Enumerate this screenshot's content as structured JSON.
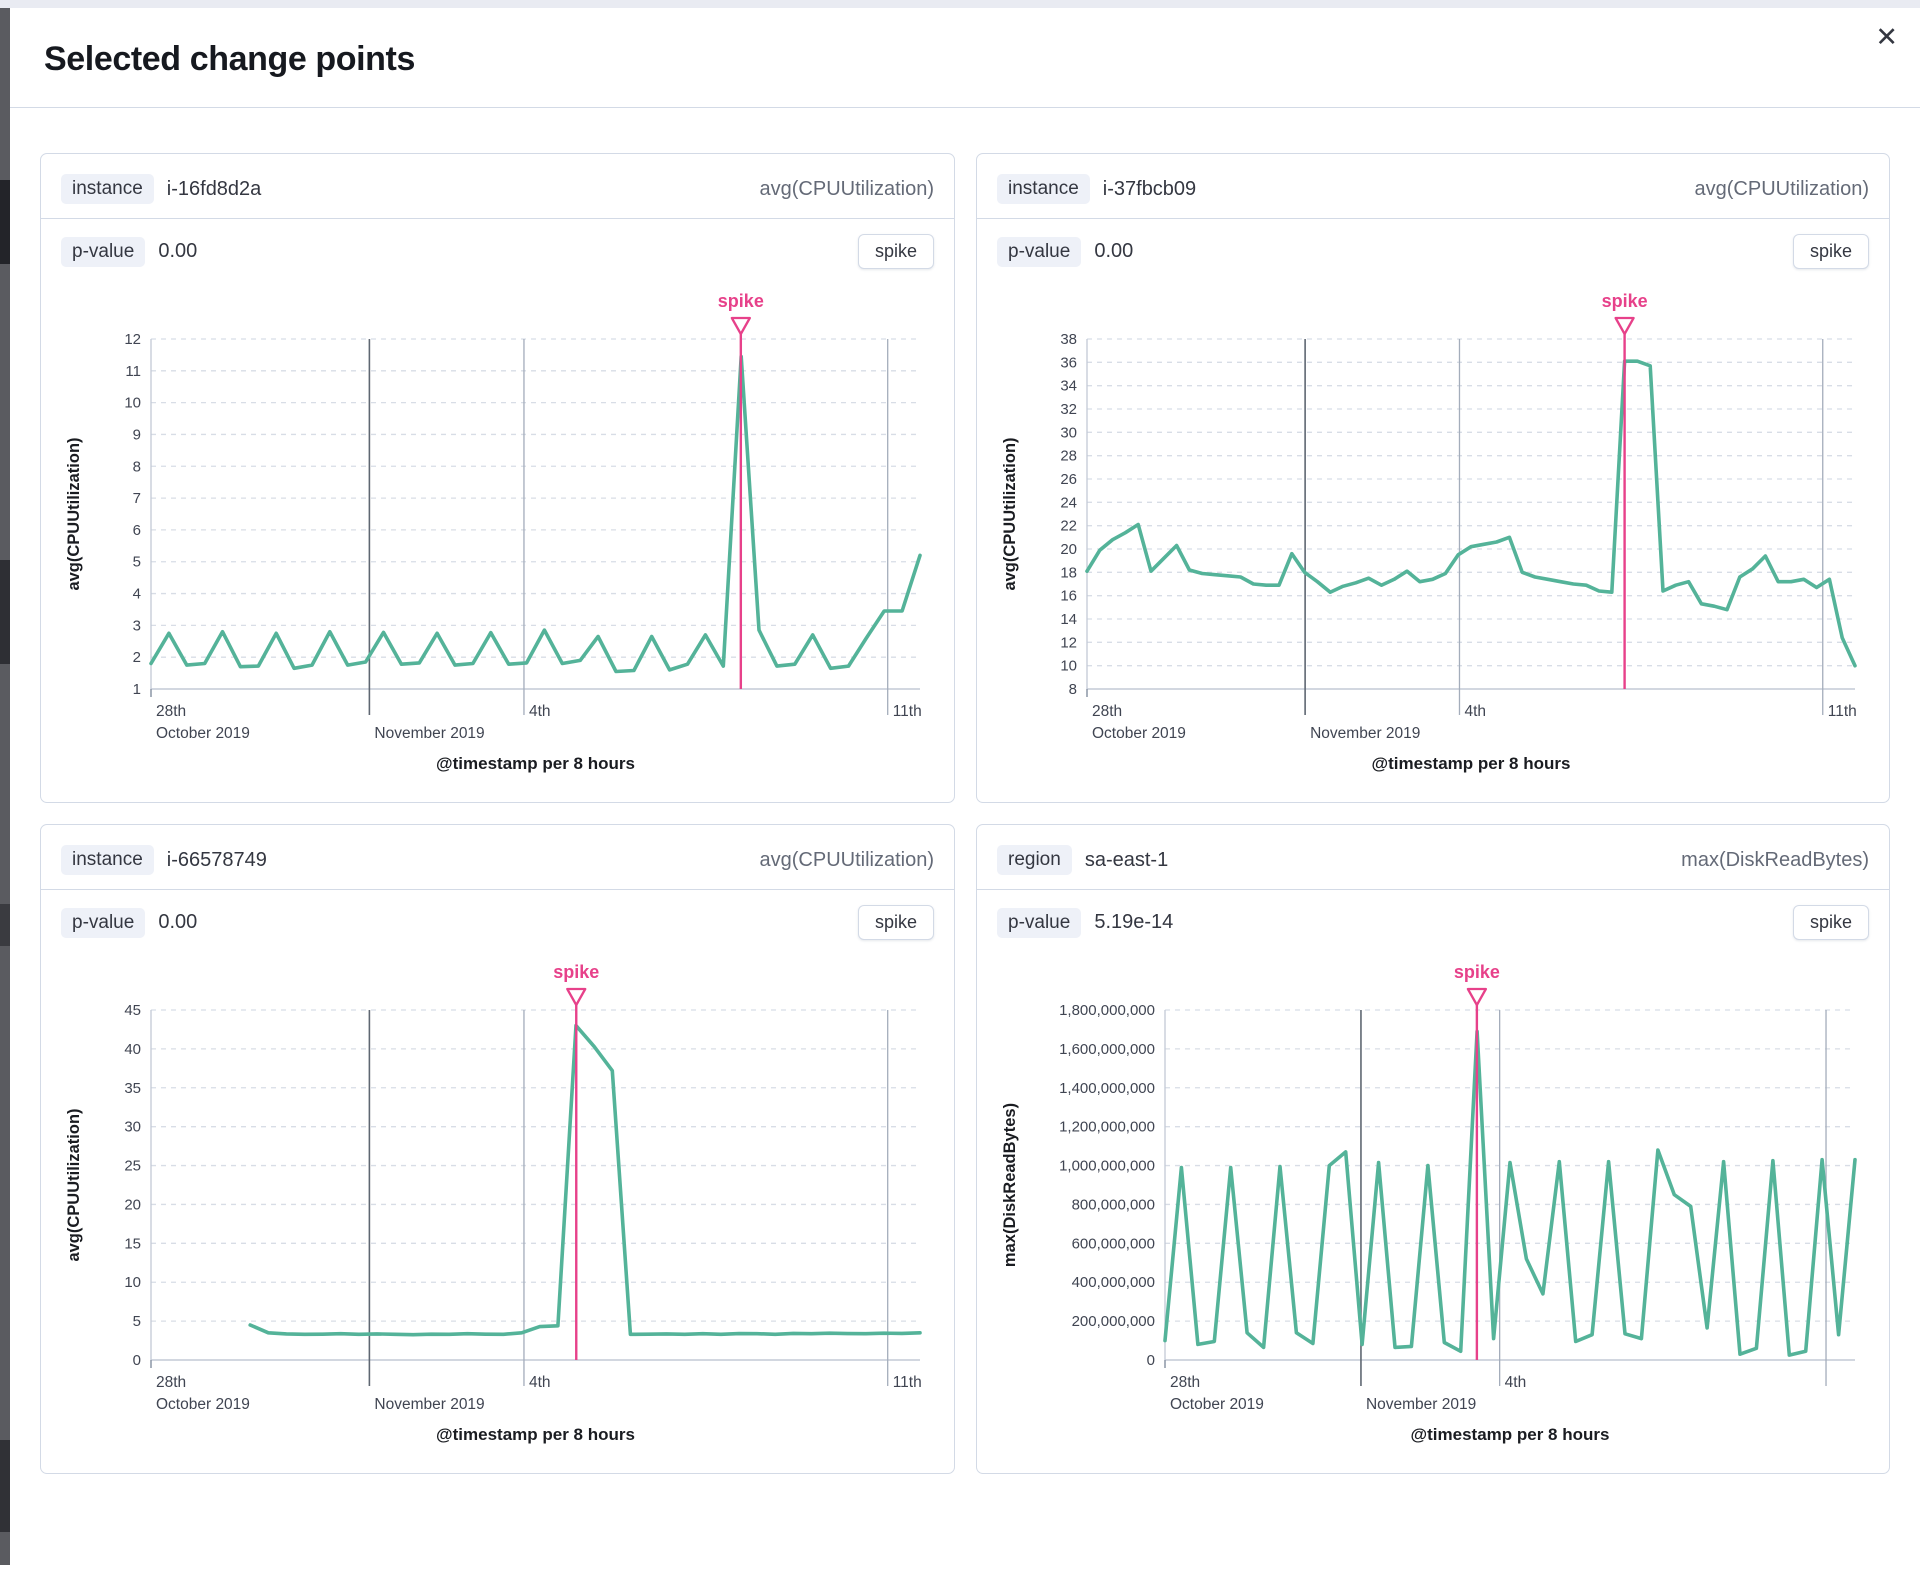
{
  "modal": {
    "title": "Selected change points",
    "close_glyph": "✕"
  },
  "panels": [
    {
      "key_label": "instance",
      "key_value": "i-16fd8d2a",
      "metric": "avg(CPUUtilization)",
      "p_label": "p-value",
      "p_value": "0.00",
      "change_type": "spike"
    },
    {
      "key_label": "instance",
      "key_value": "i-37fbcb09",
      "metric": "avg(CPUUtilization)",
      "p_label": "p-value",
      "p_value": "0.00",
      "change_type": "spike"
    },
    {
      "key_label": "instance",
      "key_value": "i-66578749",
      "metric": "avg(CPUUtilization)",
      "p_label": "p-value",
      "p_value": "0.00",
      "change_type": "spike"
    },
    {
      "key_label": "region",
      "key_value": "sa-east-1",
      "metric": "max(DiskReadBytes)",
      "p_label": "p-value",
      "p_value": "5.19e-14",
      "change_type": "spike"
    }
  ],
  "colors": {
    "line": "#54b399",
    "annotation": "#e7418a",
    "grid": "#d8dde6",
    "axis": "#c3cad6",
    "tick_text": "#404552",
    "axis_title": "#1a1c21",
    "vline_dark": "#5f6772",
    "vline_light": "#a4adbb",
    "tick_mark": "#8b95a5"
  },
  "chart_data": [
    {
      "type": "line",
      "title": "instance i-16fd8d2a",
      "ylabel": "avg(CPUUtilization)",
      "xlabel": "@timestamp per 8 hours",
      "ylim": [
        1,
        12
      ],
      "yticks": [
        1,
        2,
        3,
        4,
        5,
        6,
        7,
        8,
        9,
        10,
        11,
        12
      ],
      "ytick_labels": [
        "1",
        "2",
        "3",
        "4",
        "5",
        "6",
        "7",
        "8",
        "9",
        "10",
        "11",
        "12"
      ],
      "annotation": {
        "label": "spike",
        "x": 0.767
      },
      "xticks": [
        {
          "f": 0,
          "labels": [
            "28th",
            "October 2019"
          ],
          "tick": true
        },
        {
          "f": 0.284,
          "labels": [
            "",
            "November 2019"
          ],
          "line": "dark"
        },
        {
          "f": 0.485,
          "labels": [
            "4th"
          ],
          "line": "light"
        },
        {
          "f": 0.958,
          "labels": [
            "11th"
          ],
          "line": "light"
        }
      ],
      "series": [
        {
          "name": "avg(CPUUtilization)",
          "x_range": [
            0,
            1
          ],
          "values": [
            1.8,
            2.75,
            1.75,
            1.8,
            2.8,
            1.7,
            1.72,
            2.75,
            1.65,
            1.75,
            2.8,
            1.75,
            1.85,
            2.78,
            1.78,
            1.82,
            2.75,
            1.75,
            1.8,
            2.77,
            1.78,
            1.82,
            2.85,
            1.8,
            1.9,
            2.65,
            1.55,
            1.58,
            2.65,
            1.6,
            1.78,
            2.7,
            1.72,
            11.45,
            2.85,
            1.72,
            1.78,
            2.7,
            1.65,
            1.72,
            2.6,
            3.45,
            3.45,
            5.2
          ]
        }
      ]
    },
    {
      "type": "line",
      "title": "instance i-37fbcb09",
      "ylabel": "avg(CPUUtilization)",
      "xlabel": "@timestamp per 8 hours",
      "ylim": [
        8,
        38
      ],
      "yticks": [
        8,
        10,
        12,
        14,
        16,
        18,
        20,
        22,
        24,
        26,
        28,
        30,
        32,
        34,
        36,
        38
      ],
      "ytick_labels": [
        "8",
        "10",
        "12",
        "14",
        "16",
        "18",
        "20",
        "22",
        "24",
        "26",
        "28",
        "30",
        "32",
        "34",
        "36",
        "38"
      ],
      "annotation": {
        "label": "spike",
        "x": 0.7
      },
      "xticks": [
        {
          "f": 0,
          "labels": [
            "28th",
            "October 2019"
          ],
          "tick": true
        },
        {
          "f": 0.284,
          "labels": [
            "",
            "November 2019"
          ],
          "line": "dark"
        },
        {
          "f": 0.485,
          "labels": [
            "4th"
          ],
          "line": "light"
        },
        {
          "f": 0.958,
          "labels": [
            "11th"
          ],
          "line": "light"
        }
      ],
      "series": [
        {
          "name": "avg(CPUUtilization)",
          "x_range": [
            0,
            1
          ],
          "values": [
            18.1,
            19.9,
            20.8,
            21.4,
            22.1,
            18.1,
            19.2,
            20.3,
            18.2,
            17.9,
            17.8,
            17.7,
            17.6,
            17.0,
            16.9,
            16.9,
            19.6,
            18.0,
            17.2,
            16.3,
            16.8,
            17.1,
            17.5,
            16.9,
            17.4,
            18.1,
            17.2,
            17.4,
            17.9,
            19.5,
            20.2,
            20.4,
            20.6,
            21.0,
            18.0,
            17.6,
            17.4,
            17.2,
            17.0,
            16.9,
            16.4,
            16.3,
            36.1,
            36.1,
            35.7,
            16.4,
            16.9,
            17.2,
            15.3,
            15.1,
            14.8,
            17.6,
            18.3,
            19.4,
            17.2,
            17.2,
            17.4,
            16.7,
            17.4,
            12.4,
            10.0
          ]
        }
      ]
    },
    {
      "type": "line",
      "title": "instance i-66578749",
      "ylabel": "avg(CPUUtilization)",
      "xlabel": "@timestamp per 8 hours",
      "ylim": [
        0,
        45
      ],
      "yticks": [
        0,
        5,
        10,
        15,
        20,
        25,
        30,
        35,
        40,
        45
      ],
      "ytick_labels": [
        "0",
        "5",
        "10",
        "15",
        "20",
        "25",
        "30",
        "35",
        "40",
        "45"
      ],
      "annotation": {
        "label": "spike",
        "x": 0.553
      },
      "xticks": [
        {
          "f": 0,
          "labels": [
            "28th",
            "October 2019"
          ],
          "tick": true
        },
        {
          "f": 0.284,
          "labels": [
            "",
            "November 2019"
          ],
          "line": "dark"
        },
        {
          "f": 0.485,
          "labels": [
            "4th"
          ],
          "line": "light"
        },
        {
          "f": 0.958,
          "labels": [
            "11th"
          ],
          "line": "light"
        }
      ],
      "series": [
        {
          "name": "avg(CPUUtilization)",
          "x_range": [
            0.129,
            1
          ],
          "values": [
            4.5,
            3.5,
            3.35,
            3.3,
            3.32,
            3.38,
            3.3,
            3.36,
            3.3,
            3.25,
            3.32,
            3.3,
            3.38,
            3.32,
            3.3,
            3.5,
            4.3,
            4.4,
            43.0,
            40.3,
            37.2,
            3.3,
            3.32,
            3.36,
            3.3,
            3.38,
            3.3,
            3.4,
            3.38,
            3.3,
            3.42,
            3.38,
            3.45,
            3.4,
            3.38,
            3.45,
            3.42,
            3.5
          ]
        }
      ]
    },
    {
      "type": "line",
      "title": "region sa-east-1",
      "ylabel": "max(DiskReadBytes)",
      "xlabel": "@timestamp per 8 hours",
      "ylim": [
        0,
        1800000000
      ],
      "yticks": [
        0,
        200000000,
        400000000,
        600000000,
        800000000,
        1000000000,
        1200000000,
        1400000000,
        1600000000,
        1800000000
      ],
      "ytick_labels": [
        "0",
        "200,000,000",
        "400,000,000",
        "600,000,000",
        "800,000,000",
        "1,000,000,000",
        "1,200,000,000",
        "1,400,000,000",
        "1,600,000,000",
        "1,800,000,000"
      ],
      "annotation": {
        "label": "spike",
        "x": 0.452
      },
      "xticks": [
        {
          "f": 0,
          "labels": [
            "28th",
            "October 2019"
          ],
          "tick": true
        },
        {
          "f": 0.284,
          "labels": [
            "",
            "November 2019"
          ],
          "line": "dark"
        },
        {
          "f": 0.485,
          "labels": [
            "4th"
          ],
          "line": "light"
        },
        {
          "f": 0.958,
          "labels": [],
          "line": "light"
        }
      ],
      "series": [
        {
          "name": "max(DiskReadBytes)",
          "x_range": [
            0,
            1
          ],
          "values": [
            100000000,
            990000000,
            80000000,
            95000000,
            990000000,
            140000000,
            65000000,
            995000000,
            140000000,
            85000000,
            1000000000,
            1070000000,
            80000000,
            1015000000,
            65000000,
            70000000,
            1000000000,
            90000000,
            45000000,
            1690000000,
            110000000,
            1015000000,
            520000000,
            340000000,
            1020000000,
            95000000,
            130000000,
            1020000000,
            135000000,
            110000000,
            1080000000,
            850000000,
            790000000,
            165000000,
            1020000000,
            30000000,
            60000000,
            1025000000,
            25000000,
            45000000,
            1030000000,
            130000000,
            1030000000
          ]
        }
      ]
    }
  ]
}
